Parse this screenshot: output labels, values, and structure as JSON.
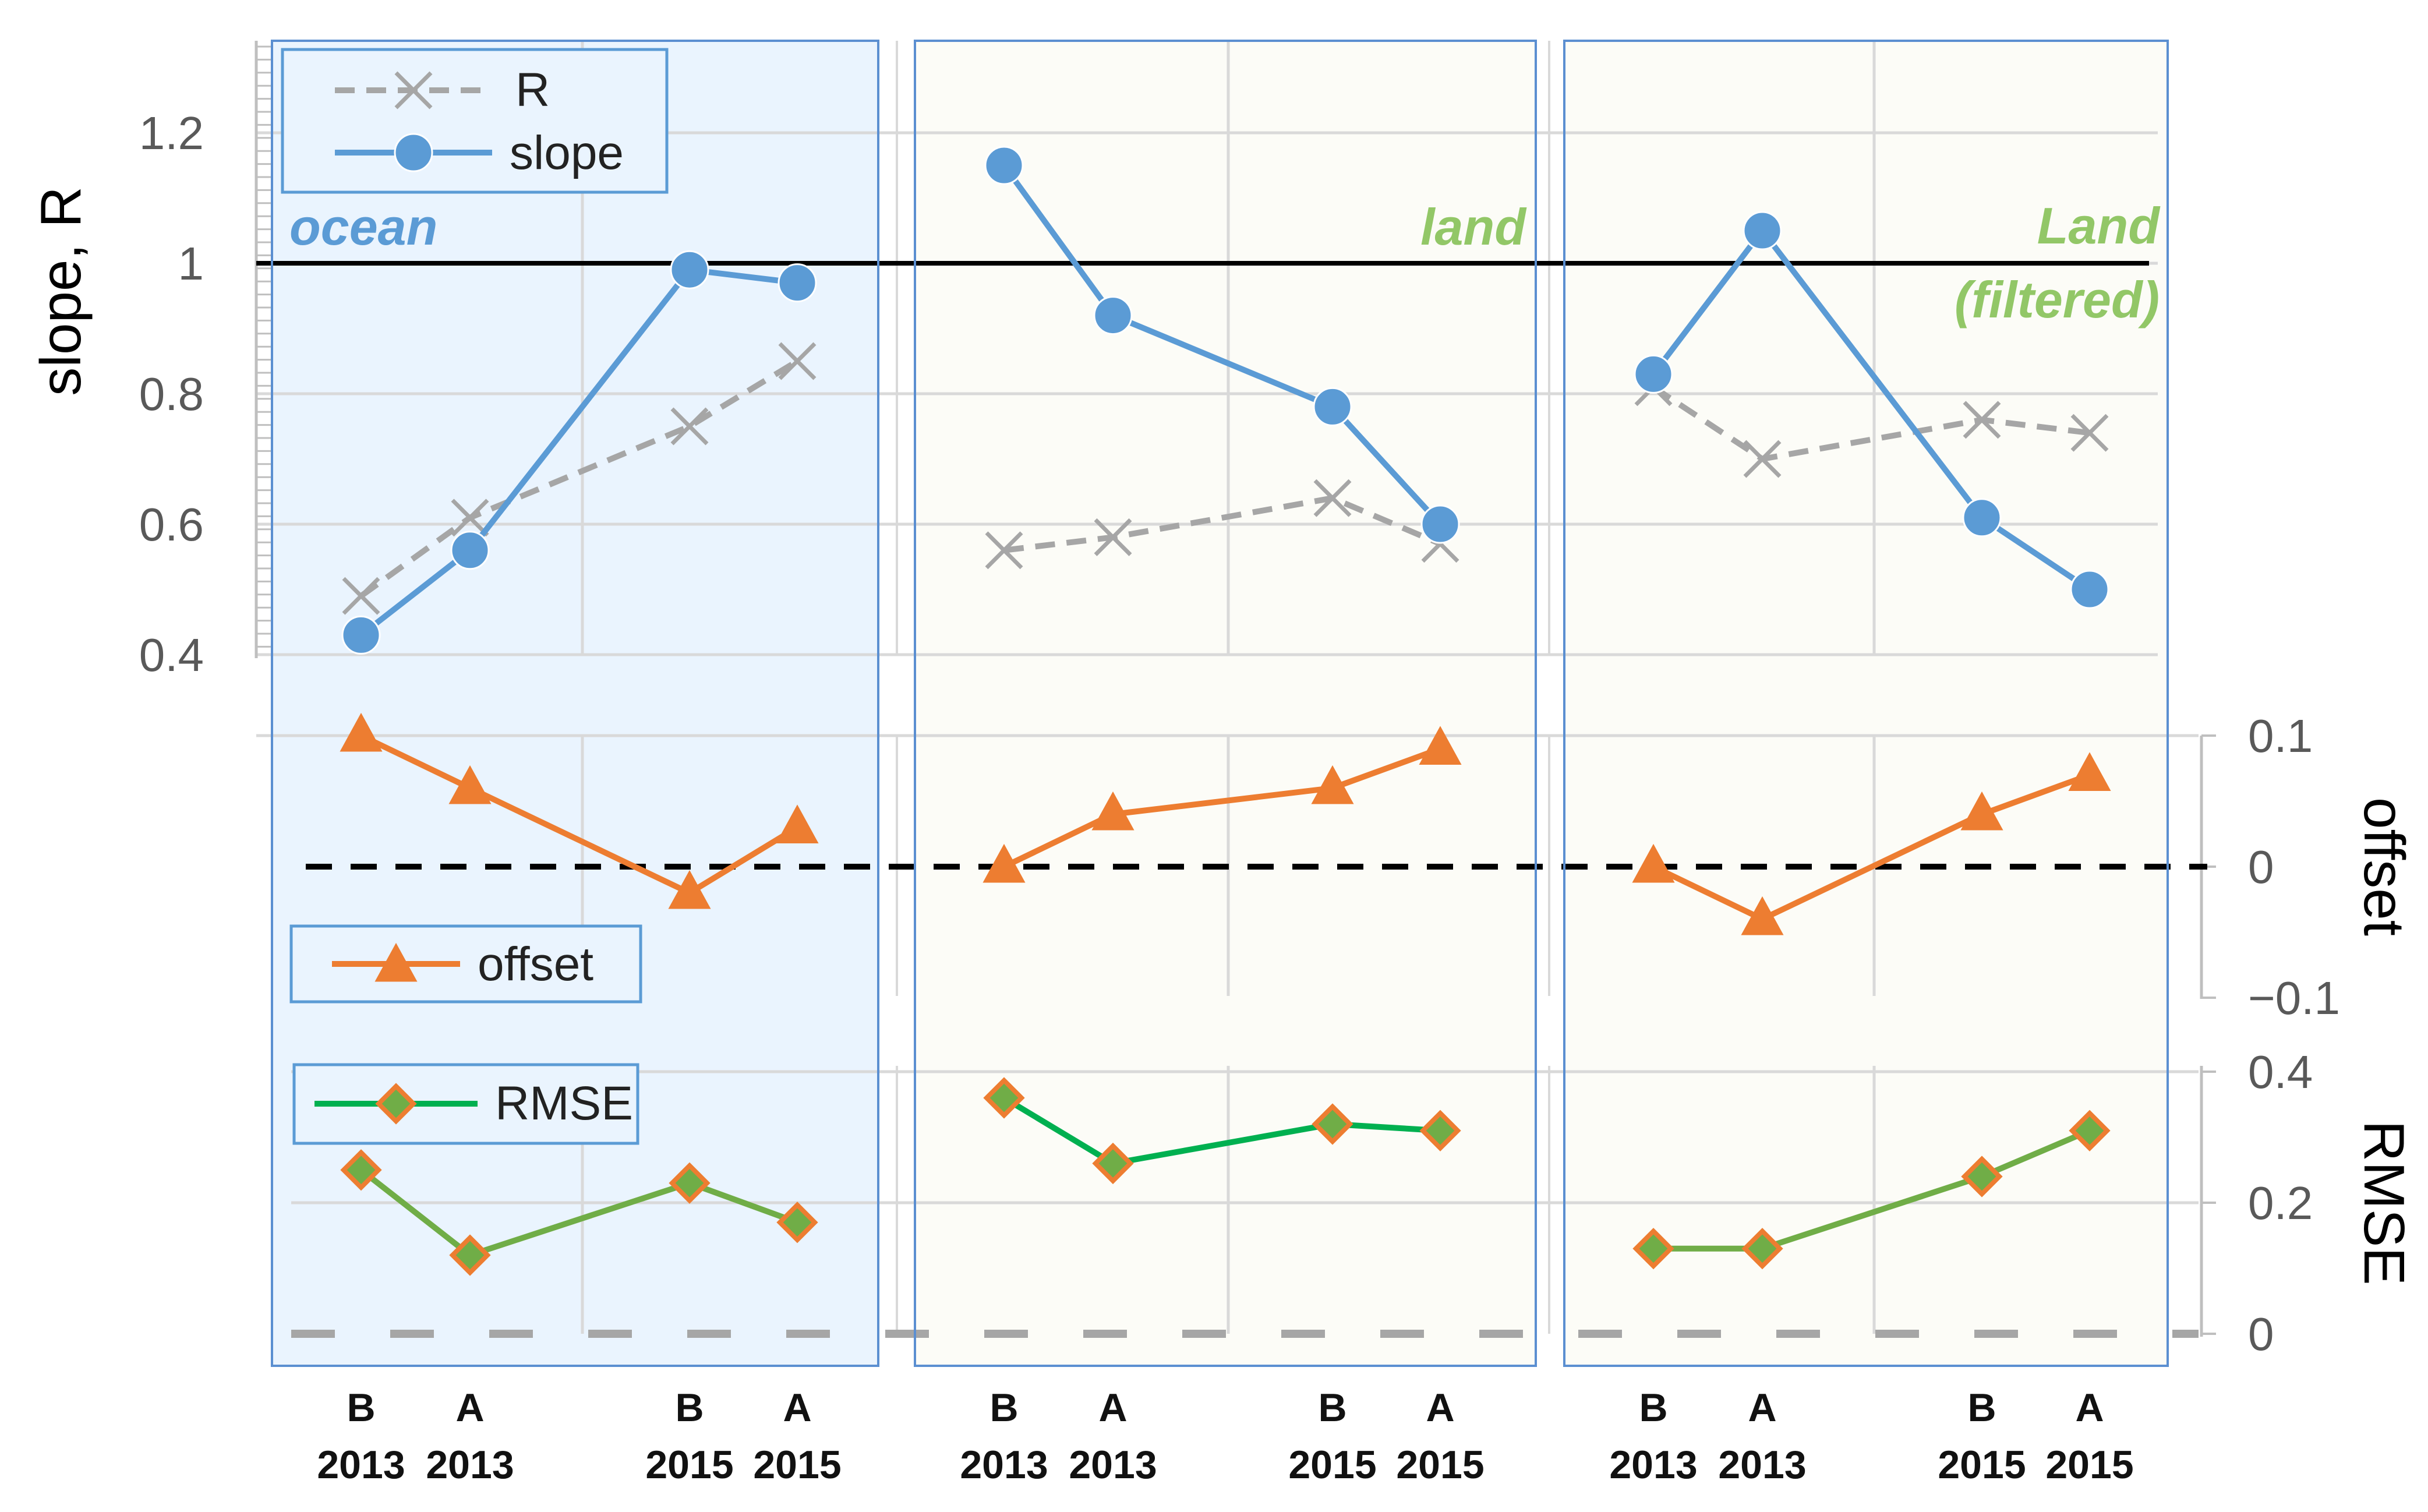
{
  "chart_data": {
    "type": "line",
    "panels": [
      {
        "label": "ocean",
        "label_color": "#5B9BD5",
        "background": "#EAF4FE"
      },
      {
        "label": "land",
        "label_color": "#92C767",
        "background": "#FCFCF7"
      },
      {
        "label": "Land",
        "label2": "(filtered)",
        "label_color": "#92C767",
        "background": "#FCFCF7"
      }
    ],
    "categories": [
      {
        "top": "B",
        "bottom": "2013"
      },
      {
        "top": "A",
        "bottom": "2013"
      },
      {
        "top": "B",
        "bottom": "2015"
      },
      {
        "top": "A",
        "bottom": "2015"
      }
    ],
    "slope_panel": {
      "ylabel": "slope, R",
      "ylim": [
        0.4,
        1.3
      ],
      "yticks": [
        "0.4",
        "0.6",
        "0.8",
        "1",
        "1.2"
      ],
      "reference_line": 1,
      "series": [
        {
          "name": "R",
          "color": "#A6A6A6",
          "style": "dashed",
          "marker": "x",
          "values": [
            [
              0.49,
              0.61,
              0.75,
              0.85
            ],
            [
              0.56,
              0.58,
              0.64,
              0.57
            ],
            [
              0.81,
              0.7,
              0.76,
              0.74
            ]
          ]
        },
        {
          "name": "slope",
          "color": "#5B9BD5",
          "style": "solid",
          "marker": "circle",
          "values": [
            [
              0.43,
              0.56,
              0.99,
              0.97
            ],
            [
              1.15,
              0.92,
              0.78,
              0.6
            ],
            [
              0.83,
              1.05,
              0.61,
              0.5
            ]
          ]
        }
      ]
    },
    "offset_panel": {
      "ylabel": "offset",
      "ylim": [
        -0.1,
        0.1
      ],
      "yticks": [
        "−0.1",
        "0",
        "0.1"
      ],
      "reference_line": 0,
      "series": [
        {
          "name": "offset",
          "color": "#ED7D31",
          "style": "solid",
          "marker": "triangle",
          "values": [
            [
              0.1,
              0.06,
              -0.02,
              0.03
            ],
            [
              0.0,
              0.04,
              0.06,
              0.09
            ],
            [
              0.0,
              -0.04,
              0.04,
              0.07
            ]
          ]
        }
      ]
    },
    "rmse_panel": {
      "ylabel": "RMSE",
      "ylim": [
        0,
        0.4
      ],
      "yticks": [
        "0",
        "0.2",
        "0.4"
      ],
      "series": [
        {
          "name": "RMSE",
          "line_colors": [
            "#70AD47",
            "#00B050",
            "#70AD47"
          ],
          "marker_fill": "#70AD47",
          "marker_edge": "#ED7D31",
          "style": "solid",
          "marker": "diamond",
          "values": [
            [
              0.25,
              0.12,
              0.23,
              0.17
            ],
            [
              0.36,
              0.26,
              0.32,
              0.31
            ],
            [
              0.13,
              0.13,
              0.24,
              0.31
            ]
          ]
        }
      ]
    }
  }
}
